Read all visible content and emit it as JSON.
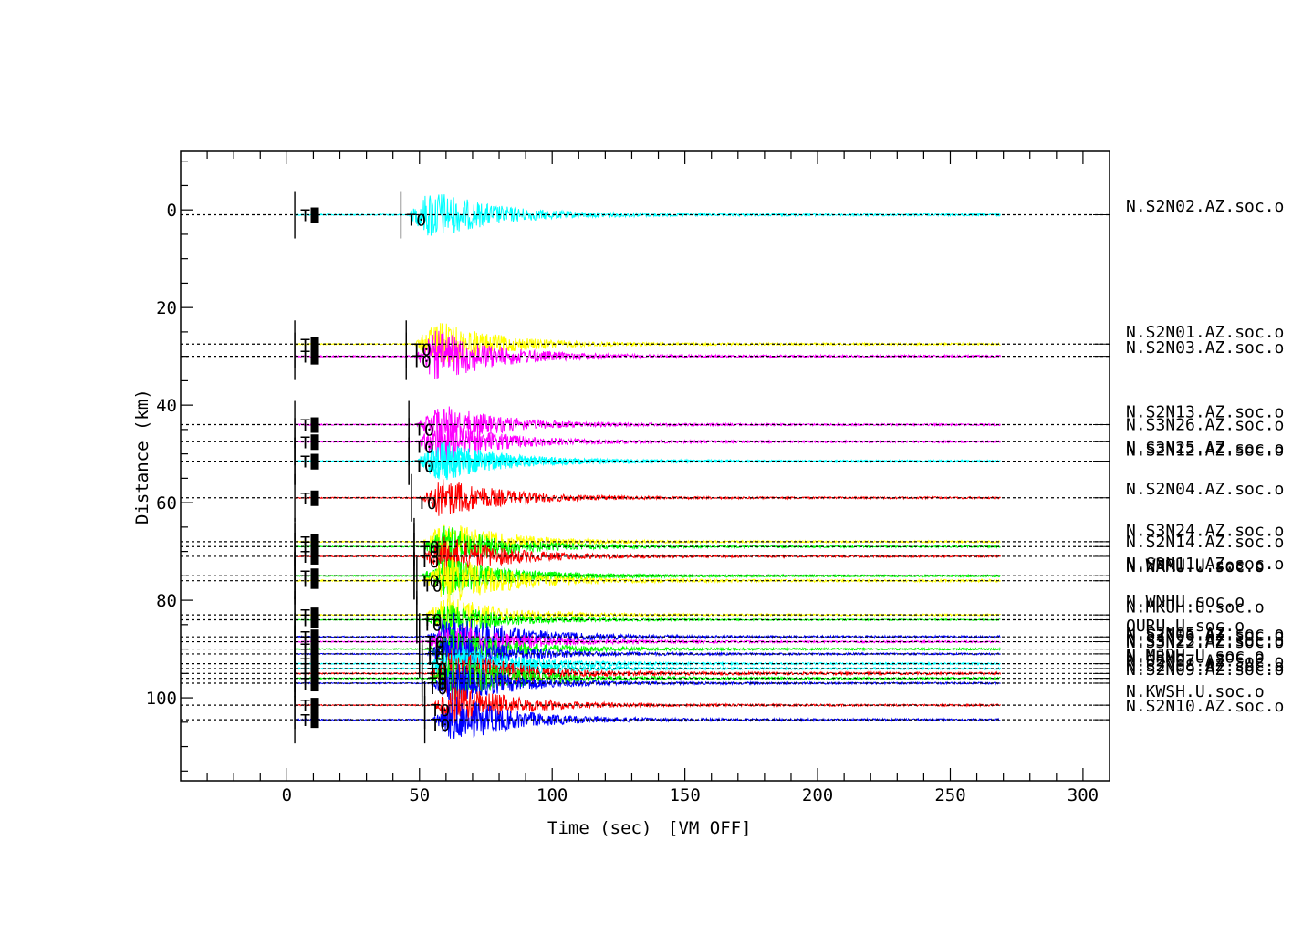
{
  "chart_data": {
    "type": "record_section",
    "xlabel": "Time (sec)",
    "vm_status": "[VM OFF]",
    "ylabel": "Distance (km)",
    "xlim": [
      -40,
      310
    ],
    "ylim": [
      -12,
      117
    ],
    "xticks": [
      0,
      50,
      100,
      150,
      200,
      250,
      300
    ],
    "yticks": [
      0,
      20,
      40,
      60,
      80,
      100
    ],
    "trace_end": 269,
    "t1_time": 3,
    "t1_label": "T1",
    "t0_label": "T0",
    "traces": [
      {
        "name": "N.S2N02.AZ.soc.o",
        "dist": 1.0,
        "color": "#00ffff",
        "t0": 46,
        "amp": 5.0,
        "label_dist": -1.0
      },
      {
        "name": "N.S2N01.AZ.soc.o",
        "dist": 27.5,
        "color": "#ffff00",
        "t0": 48,
        "amp": 4.5,
        "label_dist": 24.8
      },
      {
        "name": "N.S2N03.AZ.soc.o",
        "dist": 30.0,
        "color": "#ff00ff",
        "t0": 48,
        "amp": 5.0,
        "label_dist": 28.0
      },
      {
        "name": "N.S2N13.AZ.soc.o",
        "dist": 44.0,
        "color": "#ff00ff",
        "t0": 49,
        "amp": 4.0,
        "label_dist": 41.2
      },
      {
        "name": "N.S3N26.AZ.soc.o",
        "dist": 47.5,
        "color": "#ff00ff",
        "t0": 49,
        "amp": 4.0,
        "label_dist": 43.8
      },
      {
        "name": "N.S3N25.AZ.soc.o",
        "dist": 51.5,
        "color": "#00ffff",
        "t0": 49,
        "amp": 4.0,
        "label_dist": 48.6
      },
      {
        "name": "N.S2N12.AZ.soc.o",
        "dist": 51.5,
        "color": "#00ffff",
        "t0": 49,
        "amp": 4.0,
        "label_dist": 49.0
      },
      {
        "name": "N.S2N04.AZ.soc.o",
        "dist": 59.0,
        "color": "#ff0000",
        "t0": 50,
        "amp": 4.0,
        "label_dist": 57.0
      },
      {
        "name": "N.S3N24.AZ.soc.o",
        "dist": 68.0,
        "color": "#ffff00",
        "t0": 51,
        "amp": 4.0,
        "label_dist": 65.5
      },
      {
        "name": "N.S2N14.AZ.soc.o",
        "dist": 69.0,
        "color": "#00ff00",
        "t0": 51,
        "amp": 4.0,
        "label_dist": 67.8
      },
      {
        "name": "N.S2N11.AZ.soc.o",
        "dist": 71.0,
        "color": "#ff0000",
        "t0": 51,
        "amp": 4.0,
        "label_dist": 72.3
      },
      {
        "name": "N.WNRU.U.soc.o",
        "dist": 75.0,
        "color": "#00ff00",
        "t0": 51,
        "amp": 4.0,
        "label_dist": 72.6
      },
      {
        "name": "N.NAMU.U.soc.o",
        "dist": 75.0,
        "color": "#00ff00",
        "t0": 51,
        "amp": 3.5,
        "label_dist": 72.9
      },
      {
        "name": "N.WNHU.soc.o",
        "dist": 76.0,
        "color": "#ffff00",
        "t0": 52,
        "amp": 5.0,
        "label_dist": 80.0
      },
      {
        "name": "N.MKUH.U.soc.o",
        "dist": 83.0,
        "color": "#ffff00",
        "t0": 52,
        "amp": 3.5,
        "label_dist": 81.2
      },
      {
        "name": "OURU.U.soc.o",
        "dist": 84.0,
        "color": "#00ff00",
        "t0": 52,
        "amp": 3.0,
        "label_dist": 85.0
      },
      {
        "name": "N.S2N05.AZ.soc.o",
        "dist": 87.5,
        "color": "#0000ff",
        "t0": 53,
        "amp": 5.0,
        "label_dist": 86.5
      },
      {
        "name": "N.S2N06.AZ.soc.o",
        "dist": 88.5,
        "color": "#ff00ff",
        "t0": 53,
        "amp": 4.0,
        "label_dist": 87.0
      },
      {
        "name": "N.S3N23.AZ.soc.o",
        "dist": 90.0,
        "color": "#00ff00",
        "t0": 53,
        "amp": 4.0,
        "label_dist": 88.0
      },
      {
        "name": "N.S3N22.AZ.soc.o",
        "dist": 91.0,
        "color": "#0000ff",
        "t0": 53,
        "amp": 4.0,
        "label_dist": 88.4
      },
      {
        "name": "N.MJDH.U.soc.o",
        "dist": 93.0,
        "color": "#00ffff",
        "t0": 54,
        "amp": 4.0,
        "label_dist": 91.0
      },
      {
        "name": "N.NRMU.U.soc.o",
        "dist": 94.0,
        "color": "#00ffff",
        "t0": 54,
        "amp": 4.0,
        "label_dist": 91.5
      },
      {
        "name": "N.S2N07.AZ.soc.o",
        "dist": 95.0,
        "color": "#ff0000",
        "t0": 54,
        "amp": 5.0,
        "label_dist": 92.2
      },
      {
        "name": "N.S2N08.AZ.soc.o",
        "dist": 96.0,
        "color": "#00ff00",
        "t0": 54,
        "amp": 4.5,
        "label_dist": 93.3
      },
      {
        "name": "N.S2N09.AZ.soc.o",
        "dist": 97.0,
        "color": "#0000ff",
        "t0": 54,
        "amp": 4.0,
        "label_dist": 94.0
      },
      {
        "name": "N.KWSH.U.soc.o",
        "dist": 101.5,
        "color": "#ff0000",
        "t0": 55,
        "amp": 4.0,
        "label_dist": 98.5
      },
      {
        "name": "N.S2N10.AZ.soc.o",
        "dist": 104.5,
        "color": "#0000ff",
        "t0": 55,
        "amp": 4.5,
        "label_dist": 101.5
      }
    ]
  }
}
